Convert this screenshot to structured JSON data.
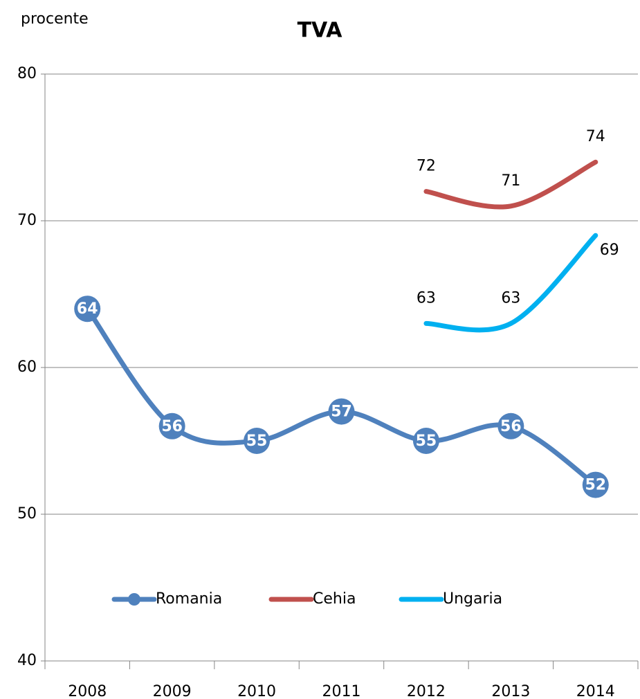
{
  "chart_data": {
    "type": "line",
    "title": "TVA",
    "ylabel": "procente",
    "categories": [
      "2008",
      "2009",
      "2010",
      "2011",
      "2012",
      "2013",
      "2014"
    ],
    "series": [
      {
        "name": "Romania",
        "color": "#4f81bd",
        "values": [
          64,
          56,
          55,
          57,
          55,
          56,
          52
        ]
      },
      {
        "name": "Cehia",
        "color": "#c0504d",
        "values": [
          null,
          null,
          null,
          null,
          72,
          71,
          74
        ]
      },
      {
        "name": "Ungaria",
        "color": "#00b0f0",
        "values": [
          null,
          null,
          null,
          null,
          63,
          63,
          69
        ]
      }
    ],
    "ylim": [
      40,
      80
    ],
    "yticks": [
      40,
      50,
      60,
      70,
      80
    ],
    "grid": true,
    "legend": "bottom"
  }
}
